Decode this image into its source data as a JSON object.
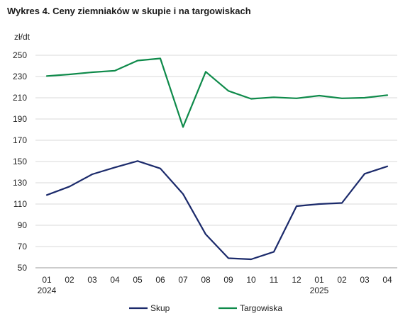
{
  "chart_data": {
    "type": "line",
    "title": "Wykres 4. Ceny ziemniaków w skupie i na targowiskach",
    "ylabel": "zł/dt",
    "xlabel": "",
    "ylim": [
      50,
      250
    ],
    "yticks": [
      50,
      70,
      90,
      110,
      130,
      150,
      170,
      190,
      210,
      230,
      250
    ],
    "grid": true,
    "legend_position": "bottom",
    "categories": [
      "01",
      "02",
      "03",
      "04",
      "05",
      "06",
      "07",
      "08",
      "09",
      "10",
      "11",
      "12",
      "01",
      "02",
      "03",
      "04"
    ],
    "year_labels": [
      {
        "index": 0,
        "label": "2024"
      },
      {
        "index": 12,
        "label": "2025"
      }
    ],
    "series": [
      {
        "name": "Skup",
        "color": "#1b2a6b",
        "values": [
          118.5,
          126.5,
          138,
          144.5,
          150.5,
          143.5,
          119.5,
          81.5,
          59,
          58,
          65,
          108,
          110,
          111,
          138.5,
          145.5
        ]
      },
      {
        "name": "Targowiska",
        "color": "#0e8a4a",
        "values": [
          230.5,
          232,
          234,
          235.5,
          245,
          247,
          182.5,
          234.5,
          216.5,
          209,
          210.5,
          209.5,
          212,
          209.5,
          210,
          212.5
        ]
      }
    ]
  }
}
